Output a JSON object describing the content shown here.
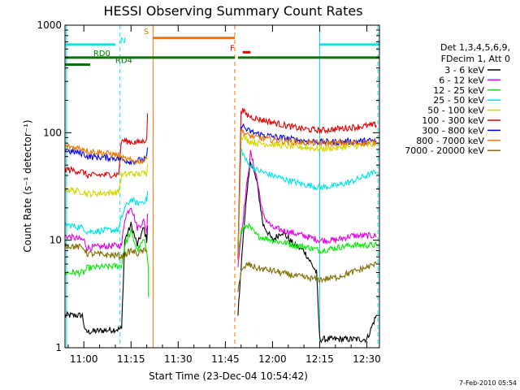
{
  "chart_data": {
    "type": "line",
    "title": "HESSI Observing Summary Count Rates",
    "xlabel": "Start Time (23-Dec-04 10:54:42)",
    "ylabel": "Count Rate (s⁻¹ detector⁻¹)",
    "y_scale": "log",
    "ylim": [
      1,
      1000
    ],
    "xlim_minutes": [
      -6,
      94
    ],
    "x_ticks": [
      "11:00",
      "11:15",
      "11:30",
      "11:45",
      "12:00",
      "12:15",
      "12:30"
    ],
    "x_tick_minutes": [
      0,
      15,
      30,
      45,
      60,
      75,
      90
    ],
    "y_ticks": [
      "1",
      "10",
      "100",
      "1000"
    ],
    "y_tick_values": [
      1,
      10,
      100,
      1000
    ],
    "grid": false,
    "legend_title": "Det 1,3,4,5,6,9,",
    "legend_subtitle": "FDecim 1, Att 0",
    "legend_position": "right",
    "timestamp": "7-Feb-2010 05:54",
    "series": [
      {
        "name": "3 - 6 keV",
        "color": "#000000",
        "points": [
          [
            -6,
            2
          ],
          [
            -0.5,
            2
          ],
          [
            0.5,
            1.4
          ],
          [
            12,
            1.5
          ],
          [
            13,
            10
          ],
          [
            15,
            14
          ],
          [
            17,
            9
          ],
          [
            19,
            13
          ],
          [
            20,
            10
          ],
          [
            20.5,
            20
          ],
          [
            49,
            2
          ],
          [
            51,
            15
          ],
          [
            53,
            55
          ],
          [
            55,
            35
          ],
          [
            57,
            14
          ],
          [
            60,
            10
          ],
          [
            63,
            12
          ],
          [
            67,
            9
          ],
          [
            70,
            8
          ],
          [
            74,
            5
          ],
          [
            75,
            1.2
          ],
          [
            90,
            1.2
          ],
          [
            93,
            2
          ]
        ]
      },
      {
        "name": "6 - 12 keV",
        "color": "#e600e6",
        "points": [
          [
            -6,
            11
          ],
          [
            0,
            10
          ],
          [
            1,
            8.5
          ],
          [
            12,
            9
          ],
          [
            13,
            16
          ],
          [
            15,
            21
          ],
          [
            17,
            13
          ],
          [
            19,
            15
          ],
          [
            20,
            12
          ],
          [
            20.5,
            24
          ],
          [
            49,
            6
          ],
          [
            51,
            20
          ],
          [
            53,
            65
          ],
          [
            55,
            38
          ],
          [
            57,
            17
          ],
          [
            60,
            13
          ],
          [
            65,
            12
          ],
          [
            70,
            11
          ],
          [
            75,
            10
          ],
          [
            80,
            10
          ],
          [
            85,
            11
          ],
          [
            93,
            11
          ]
        ]
      },
      {
        "name": "12 - 25 keV",
        "color": "#00ee00",
        "points": [
          [
            -6,
            5
          ],
          [
            0,
            5
          ],
          [
            1,
            5.5
          ],
          [
            12,
            5.8
          ],
          [
            13,
            9
          ],
          [
            15,
            12
          ],
          [
            17,
            8
          ],
          [
            19,
            10
          ],
          [
            20,
            8
          ],
          [
            20.5,
            6
          ],
          [
            20.6,
            1.6
          ],
          [
            49,
            7
          ],
          [
            50,
            12
          ],
          [
            52,
            14
          ],
          [
            55,
            11
          ],
          [
            60,
            10
          ],
          [
            67,
            9
          ],
          [
            72,
            8.5
          ],
          [
            75,
            8
          ],
          [
            80,
            8.5
          ],
          [
            85,
            9
          ],
          [
            93,
            9
          ]
        ]
      },
      {
        "name": "25 - 50 keV",
        "color": "#00e5e5",
        "points": [
          [
            -6,
            14
          ],
          [
            0,
            13
          ],
          [
            1,
            12
          ],
          [
            11,
            12.5
          ],
          [
            12,
            16
          ],
          [
            13,
            20
          ],
          [
            15,
            24
          ],
          [
            17,
            22
          ],
          [
            19,
            23
          ],
          [
            20,
            24
          ],
          [
            20.5,
            33
          ],
          [
            49,
            7
          ],
          [
            50,
            70
          ],
          [
            52,
            52
          ],
          [
            55,
            45
          ],
          [
            60,
            40
          ],
          [
            65,
            36
          ],
          [
            70,
            33
          ],
          [
            75,
            31
          ],
          [
            80,
            32
          ],
          [
            85,
            35
          ],
          [
            90,
            40
          ],
          [
            93,
            43
          ]
        ]
      },
      {
        "name": "50 - 100 keV",
        "color": "#d6d600",
        "points": [
          [
            -6,
            30
          ],
          [
            0,
            28
          ],
          [
            1,
            27
          ],
          [
            11,
            28
          ],
          [
            12,
            40
          ],
          [
            15,
            42
          ],
          [
            17,
            41
          ],
          [
            19,
            42
          ],
          [
            20,
            42
          ],
          [
            20.5,
            70
          ],
          [
            49,
            7
          ],
          [
            50,
            95
          ],
          [
            52,
            85
          ],
          [
            55,
            80
          ],
          [
            60,
            78
          ],
          [
            65,
            75
          ],
          [
            70,
            73
          ],
          [
            75,
            71
          ],
          [
            80,
            72
          ],
          [
            85,
            75
          ],
          [
            93,
            78
          ]
        ]
      },
      {
        "name": "100 - 300 keV",
        "color": "#e60000",
        "points": [
          [
            -6,
            46
          ],
          [
            0,
            43
          ],
          [
            1,
            40
          ],
          [
            11,
            41
          ],
          [
            12,
            85
          ],
          [
            15,
            82
          ],
          [
            17,
            81
          ],
          [
            19,
            83
          ],
          [
            20,
            90
          ],
          [
            20.5,
            230
          ],
          [
            49,
            7
          ],
          [
            50,
            165
          ],
          [
            52,
            145
          ],
          [
            55,
            135
          ],
          [
            60,
            125
          ],
          [
            65,
            115
          ],
          [
            70,
            108
          ],
          [
            75,
            105
          ],
          [
            80,
            108
          ],
          [
            85,
            112
          ],
          [
            93,
            118
          ]
        ]
      },
      {
        "name": "300 - 800 keV",
        "color": "#0000ee",
        "points": [
          [
            -6,
            68
          ],
          [
            0,
            64
          ],
          [
            1,
            60
          ],
          [
            11,
            58
          ],
          [
            12,
            56
          ],
          [
            15,
            54
          ],
          [
            17,
            55
          ],
          [
            19,
            56
          ],
          [
            20,
            58
          ],
          [
            20.5,
            85
          ],
          [
            49,
            7
          ],
          [
            50,
            120
          ],
          [
            52,
            105
          ],
          [
            55,
            98
          ],
          [
            60,
            92
          ],
          [
            65,
            88
          ],
          [
            70,
            84
          ],
          [
            75,
            82
          ],
          [
            80,
            82
          ],
          [
            85,
            83
          ],
          [
            93,
            84
          ]
        ]
      },
      {
        "name": "800 - 7000 keV",
        "color": "#ee7700",
        "points": [
          [
            -6,
            75
          ],
          [
            0,
            71
          ],
          [
            1,
            68
          ],
          [
            11,
            62
          ],
          [
            12,
            58
          ],
          [
            15,
            55
          ],
          [
            17,
            54
          ],
          [
            19,
            55
          ],
          [
            20,
            57
          ],
          [
            20.5,
            65
          ],
          [
            49,
            7
          ],
          [
            50,
            105
          ],
          [
            52,
            95
          ],
          [
            55,
            90
          ],
          [
            60,
            86
          ],
          [
            65,
            83
          ],
          [
            70,
            81
          ],
          [
            75,
            80
          ],
          [
            80,
            80
          ],
          [
            85,
            80
          ],
          [
            93,
            81
          ]
        ]
      },
      {
        "name": "7000 - 20000 keV",
        "color": "#807000",
        "points": [
          [
            -6,
            9
          ],
          [
            0,
            8.5
          ],
          [
            1,
            7.5
          ],
          [
            11,
            7.2
          ],
          [
            12,
            7
          ],
          [
            15,
            8
          ],
          [
            17,
            7.5
          ],
          [
            19,
            8
          ],
          [
            20,
            7.8
          ],
          [
            20.5,
            9
          ],
          [
            49,
            3.5
          ],
          [
            50,
            5
          ],
          [
            52,
            6
          ],
          [
            55,
            5.5
          ],
          [
            60,
            5.2
          ],
          [
            65,
            4.8
          ],
          [
            70,
            4.5
          ],
          [
            75,
            4.3
          ],
          [
            80,
            4.5
          ],
          [
            85,
            5
          ],
          [
            93,
            6
          ]
        ]
      }
    ],
    "annotations": [
      {
        "text": "N",
        "color": "#00e5e5",
        "x": 11.5,
        "y": 660
      },
      {
        "text": "S",
        "color": "#ee7700",
        "x": 19,
        "y": 800
      },
      {
        "text": "F",
        "color": "#e60000",
        "x": 46.5,
        "y": 560
      },
      {
        "text": "RD0",
        "color": "#007700",
        "x": 3,
        "y": 500
      },
      {
        "text": "RD4",
        "color": "#007700",
        "x": 10,
        "y": 430
      }
    ],
    "flag_bars": [
      {
        "label": "N",
        "color": "#00e5e5",
        "ranges": [
          [
            -6,
            10
          ],
          [
            75,
            94
          ]
        ],
        "y": 660
      },
      {
        "label": "S",
        "color": "#ee7700",
        "ranges": [
          [
            22,
            48
          ]
        ],
        "y": 760
      },
      {
        "label": "F",
        "color": "#e60000",
        "ranges": [
          [
            50.5,
            53
          ]
        ],
        "y": 560
      },
      {
        "label": "RD0",
        "color": "#007700",
        "ranges": [
          [
            -6,
            48
          ],
          [
            49,
            94
          ]
        ],
        "y": 500
      },
      {
        "label": "RD4",
        "color": "#007700",
        "ranges": [
          [
            -6,
            2
          ]
        ],
        "y": 430
      }
    ],
    "vertical_markers": [
      {
        "x": -5.5,
        "color": "#00e5e5",
        "style": "solid"
      },
      {
        "x": 11.5,
        "color": "#00e5e5",
        "style": "dashed"
      },
      {
        "x": 22,
        "color": "#ee7700",
        "style": "solid"
      },
      {
        "x": 48,
        "color": "#ee7700",
        "style": "dashed"
      },
      {
        "x": 75,
        "color": "#00e5e5",
        "style": "solid"
      },
      {
        "x": 93.5,
        "color": "#00e5e5",
        "style": "dashed"
      }
    ]
  }
}
